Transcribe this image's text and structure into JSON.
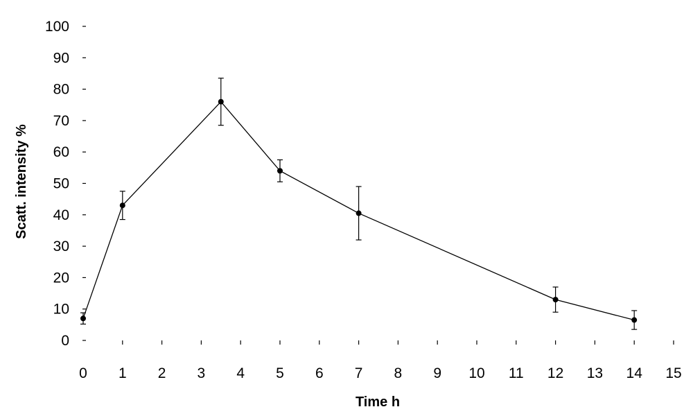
{
  "chart_data": {
    "type": "line",
    "title": "",
    "xlabel": "Time h",
    "ylabel": "Scatt. intensity %",
    "xlim": [
      0,
      15
    ],
    "ylim": [
      0,
      100
    ],
    "x_tick_labels": [
      "0",
      "1",
      "2",
      "3",
      "4",
      "5",
      "6",
      "7",
      "8",
      "9",
      "10",
      "11",
      "12",
      "13",
      "14",
      "15"
    ],
    "y_tick_labels": [
      "0",
      "10",
      "20",
      "30",
      "40",
      "50",
      "60",
      "70",
      "80",
      "90",
      "100"
    ],
    "grid": false,
    "legend": false,
    "series": [
      {
        "x": [
          0,
          1,
          3.5,
          5,
          7,
          12,
          14
        ],
        "y": [
          7,
          43,
          76,
          54,
          40.5,
          13,
          6.5
        ],
        "error": [
          1.8,
          4.5,
          7.5,
          3.5,
          8.5,
          4,
          3
        ],
        "color": "#000000"
      }
    ]
  }
}
